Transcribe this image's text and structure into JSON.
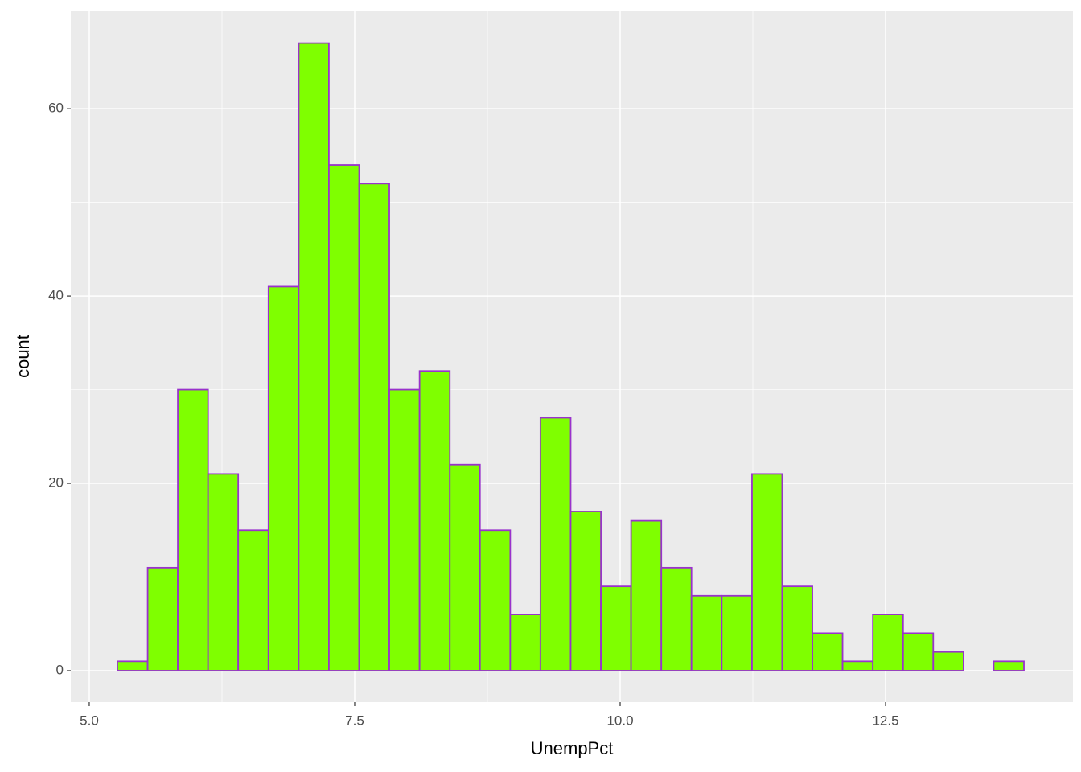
{
  "chart_data": {
    "type": "histogram",
    "x_label": "UnempPct",
    "y_label": "count",
    "bins": [
      5.265,
      5.55,
      5.834,
      6.119,
      6.403,
      6.688,
      6.973,
      7.257,
      7.542,
      7.826,
      8.111,
      8.396,
      8.68,
      8.965,
      9.249,
      9.534,
      9.819,
      10.103,
      10.388,
      10.672,
      10.957,
      11.242,
      11.526,
      11.811,
      12.095,
      12.38,
      12.665,
      12.949,
      13.234,
      13.518,
      13.803
    ],
    "counts": [
      1,
      11,
      30,
      21,
      15,
      41,
      67,
      54,
      52,
      30,
      32,
      22,
      15,
      6,
      27,
      17,
      9,
      16,
      11,
      8,
      8,
      21,
      9,
      4,
      1,
      6,
      4,
      2,
      0,
      1
    ],
    "color": "#7fff00",
    "edge_color": "#9932cc",
    "xlim": [
      4.826,
      14.265
    ],
    "ylim": [
      -3.35,
      70.4
    ],
    "xticks": [
      {
        "value": 5,
        "label": "5.0"
      },
      7.5,
      {
        "value": 10,
        "label": "10.0"
      },
      12.5
    ],
    "yticks": [
      0,
      20,
      40,
      60
    ],
    "grid": true,
    "minor_grid": true
  }
}
